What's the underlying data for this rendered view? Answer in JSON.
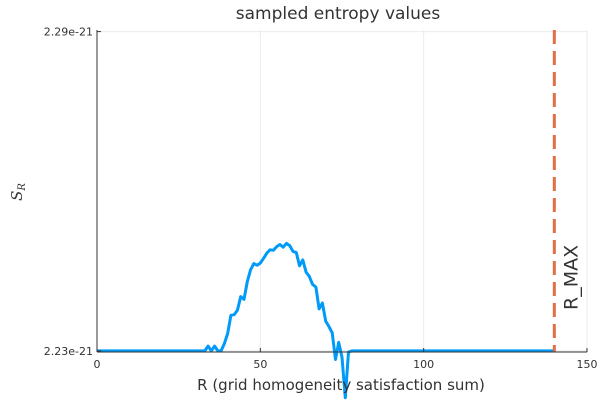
{
  "chart_data": {
    "type": "line",
    "title": "sampled entropy values",
    "xlabel": "R (grid homogeneity satisfaction sum)",
    "ylabel_main": "S",
    "ylabel_sub": "R",
    "xlim": [
      0,
      150
    ],
    "ylim": [
      2.2298,
      2.2903
    ],
    "xticks": [
      0,
      50,
      100,
      150
    ],
    "xtick_labels": [
      "0",
      "50",
      "100",
      "150"
    ],
    "yticks": [
      2.23,
      2.29
    ],
    "ytick_labels": [
      "2.23e-21",
      "2.29e-21"
    ],
    "y_unit_multiplier": "1e-21",
    "grid": true,
    "colors": {
      "series": "#009af9",
      "reference_line": "#e26f46",
      "grid": "#ebebeb",
      "axis": "#333333"
    },
    "series": [
      {
        "x": [
          0,
          33,
          34,
          35,
          36,
          37,
          38,
          39,
          40,
          41,
          42,
          43,
          44,
          45,
          46,
          47,
          48,
          49,
          50,
          51,
          52,
          53,
          54,
          55,
          56,
          57,
          58,
          59,
          60,
          61,
          62,
          63,
          64,
          65,
          66,
          67,
          68,
          69,
          70,
          71,
          72,
          73,
          74,
          75,
          76,
          77,
          78,
          79,
          140
        ],
        "y": [
          2.23,
          2.23,
          2.2309,
          2.23,
          2.2309,
          2.23,
          2.23,
          2.2314,
          2.2333,
          2.2367,
          2.2368,
          2.2377,
          2.2402,
          2.2397,
          2.243,
          2.2452,
          2.2464,
          2.2461,
          2.2465,
          2.2474,
          2.2484,
          2.249,
          2.2489,
          2.2496,
          2.25,
          2.2495,
          2.2502,
          2.2498,
          2.2487,
          2.2485,
          2.246,
          2.2471,
          2.2448,
          2.244,
          2.2425,
          2.242,
          2.2379,
          2.239,
          2.2356,
          2.2346,
          2.2334,
          2.2284,
          2.2316,
          2.2288,
          2.2212,
          2.2298,
          2.23,
          2.23,
          2.23
        ]
      }
    ],
    "reference_line": {
      "x": 140,
      "label": "R_MAX"
    }
  }
}
